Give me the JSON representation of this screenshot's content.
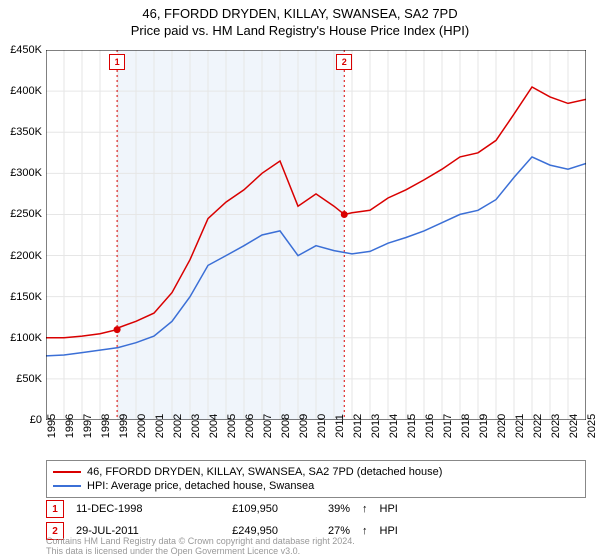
{
  "title_line1": "46, FFORDD DRYDEN, KILLAY, SWANSEA, SA2 7PD",
  "title_line2": "Price paid vs. HM Land Registry's House Price Index (HPI)",
  "chart": {
    "type": "line",
    "background_color": "#ffffff",
    "grid_color": "#e6e6e6",
    "axis_color": "#000000",
    "title_fontsize": 13,
    "tick_fontsize": 11,
    "x_start_year": 1995,
    "x_end_year": 2025,
    "y_min": 0,
    "y_max": 450000,
    "y_tick_step": 50000,
    "y_tick_prefix": "£",
    "y_tick_suffix": "K",
    "y_tick_divisor": 1000,
    "x_tick_rotation": -90,
    "series": [
      {
        "name": "46, FFORDD DRYDEN, KILLAY, SWANSEA, SA2 7PD (detached house)",
        "color": "#d90000",
        "line_width": 1.5,
        "points": [
          [
            1995,
            100000
          ],
          [
            1996,
            100000
          ],
          [
            1997,
            102000
          ],
          [
            1998,
            105000
          ],
          [
            1998.95,
            109950
          ],
          [
            1999,
            112000
          ],
          [
            2000,
            120000
          ],
          [
            2001,
            130000
          ],
          [
            2002,
            155000
          ],
          [
            2003,
            195000
          ],
          [
            2004,
            245000
          ],
          [
            2005,
            265000
          ],
          [
            2006,
            280000
          ],
          [
            2007,
            300000
          ],
          [
            2008,
            315000
          ],
          [
            2009,
            260000
          ],
          [
            2010,
            275000
          ],
          [
            2011,
            260000
          ],
          [
            2011.57,
            249950
          ],
          [
            2012,
            252000
          ],
          [
            2013,
            255000
          ],
          [
            2014,
            270000
          ],
          [
            2015,
            280000
          ],
          [
            2016,
            292000
          ],
          [
            2017,
            305000
          ],
          [
            2018,
            320000
          ],
          [
            2019,
            325000
          ],
          [
            2020,
            340000
          ],
          [
            2021,
            372000
          ],
          [
            2022,
            405000
          ],
          [
            2023,
            393000
          ],
          [
            2024,
            385000
          ],
          [
            2025,
            390000
          ]
        ]
      },
      {
        "name": "HPI: Average price, detached house, Swansea",
        "color": "#3b6fd6",
        "line_width": 1.5,
        "points": [
          [
            1995,
            78000
          ],
          [
            1996,
            79000
          ],
          [
            1997,
            82000
          ],
          [
            1998,
            85000
          ],
          [
            1999,
            88000
          ],
          [
            2000,
            94000
          ],
          [
            2001,
            102000
          ],
          [
            2002,
            120000
          ],
          [
            2003,
            150000
          ],
          [
            2004,
            188000
          ],
          [
            2005,
            200000
          ],
          [
            2006,
            212000
          ],
          [
            2007,
            225000
          ],
          [
            2008,
            230000
          ],
          [
            2009,
            200000
          ],
          [
            2010,
            212000
          ],
          [
            2011,
            206000
          ],
          [
            2012,
            202000
          ],
          [
            2013,
            205000
          ],
          [
            2014,
            215000
          ],
          [
            2015,
            222000
          ],
          [
            2016,
            230000
          ],
          [
            2017,
            240000
          ],
          [
            2018,
            250000
          ],
          [
            2019,
            255000
          ],
          [
            2020,
            268000
          ],
          [
            2021,
            295000
          ],
          [
            2022,
            320000
          ],
          [
            2023,
            310000
          ],
          [
            2024,
            305000
          ],
          [
            2025,
            312000
          ]
        ]
      }
    ],
    "sale_markers": [
      {
        "n": "1",
        "year": 1998.95,
        "value": 109950,
        "color": "#d90000"
      },
      {
        "n": "2",
        "year": 2011.57,
        "value": 249950,
        "color": "#d90000"
      }
    ],
    "sale_vline_color": "#d90000",
    "sale_vline_dash": "2,3",
    "sale_band_color": "#f0f5fb",
    "marker_label_top_y": 435000
  },
  "legend": {
    "border_color": "#888888",
    "fontsize": 11
  },
  "sales_table": [
    {
      "n": "1",
      "date": "11-DEC-1998",
      "price": "£109,950",
      "pct": "39%",
      "arrow": "↑",
      "label": "HPI",
      "color": "#d90000"
    },
    {
      "n": "2",
      "date": "29-JUL-2011",
      "price": "£249,950",
      "pct": "27%",
      "arrow": "↑",
      "label": "HPI",
      "color": "#d90000"
    }
  ],
  "footer_line1": "Contains HM Land Registry data © Crown copyright and database right 2024.",
  "footer_line2": "This data is licensed under the Open Government Licence v3.0.",
  "footer_color": "#999999"
}
